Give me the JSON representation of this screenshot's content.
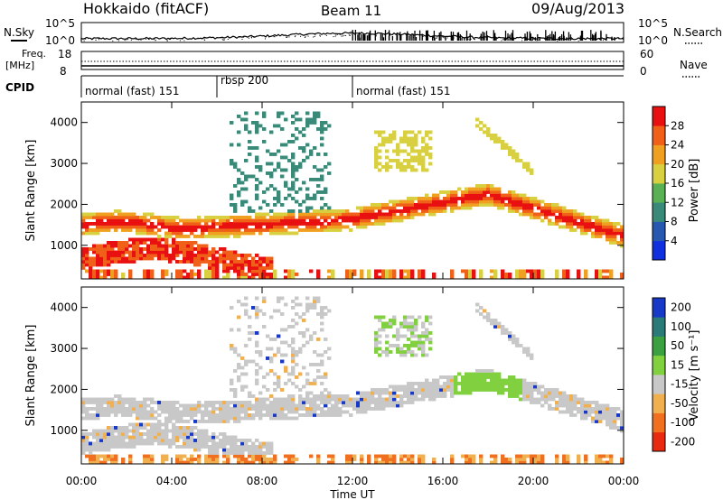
{
  "header": {
    "station": "Hokkaido (fitACF)",
    "beam": "Beam 11",
    "date": "09/Aug/2013"
  },
  "top_panel": {
    "left_label": "N.Sky",
    "right_label": "N.Search",
    "left_ticks": [
      "10^5",
      "10^0"
    ],
    "right_ticks": [
      "10^5",
      "10^0"
    ]
  },
  "freq_panel": {
    "left_label_1": "Freq.",
    "left_label_2": "[MHz]",
    "right_label": "Nave",
    "left_ticks": [
      "18",
      "8"
    ],
    "right_ticks": [
      "60",
      "0"
    ]
  },
  "cpid_panel": {
    "label": "CPID",
    "segments": [
      {
        "name": "normal (fast) 151",
        "start": 0,
        "end": 6
      },
      {
        "name": "rbsp 200",
        "start": 6,
        "end": 12
      },
      {
        "name": "normal (fast) 151",
        "start": 12,
        "end": 24
      }
    ]
  },
  "x_axis": {
    "label": "Time UT",
    "ticks": [
      "00:00",
      "04:00",
      "08:00",
      "12:00",
      "16:00",
      "20:00",
      "00:00"
    ]
  },
  "colors": {
    "power_scale": [
      "#1030e0",
      "#2858b0",
      "#3a8a7a",
      "#5ab054",
      "#d8d040",
      "#f0a020",
      "#f06018",
      "#e81010"
    ],
    "velocity_scale": [
      "#1838c8",
      "#2a7a78",
      "#3aa040",
      "#80d040",
      "#c8c8c8",
      "#f0b050",
      "#f07020",
      "#e82a10"
    ]
  },
  "chart_data": [
    {
      "type": "heatmap",
      "title": "",
      "ylabel": "Slant Range [km]",
      "xlabel": "",
      "x_range_hours": [
        0,
        24
      ],
      "ylim": [
        180,
        4500
      ],
      "y_ticks": [
        1000,
        2000,
        3000,
        4000
      ],
      "colorbar": {
        "label": "Power [dB]",
        "ticks": [
          "4",
          "8",
          "12",
          "16",
          "20",
          "24",
          "28"
        ],
        "range": [
          0,
          32
        ]
      }
    },
    {
      "type": "heatmap",
      "title": "",
      "ylabel": "Slant Range [km]",
      "xlabel": "Time UT",
      "x_range_hours": [
        0,
        24
      ],
      "ylim": [
        180,
        4500
      ],
      "y_ticks": [
        1000,
        2000,
        3000,
        4000
      ],
      "colorbar": {
        "label": "Velocity [m s⁻¹]",
        "ticks": [
          "200",
          "100",
          "50",
          "15",
          "-15",
          "-50",
          "-100",
          "-200"
        ],
        "range": [
          -250,
          250
        ]
      }
    }
  ]
}
